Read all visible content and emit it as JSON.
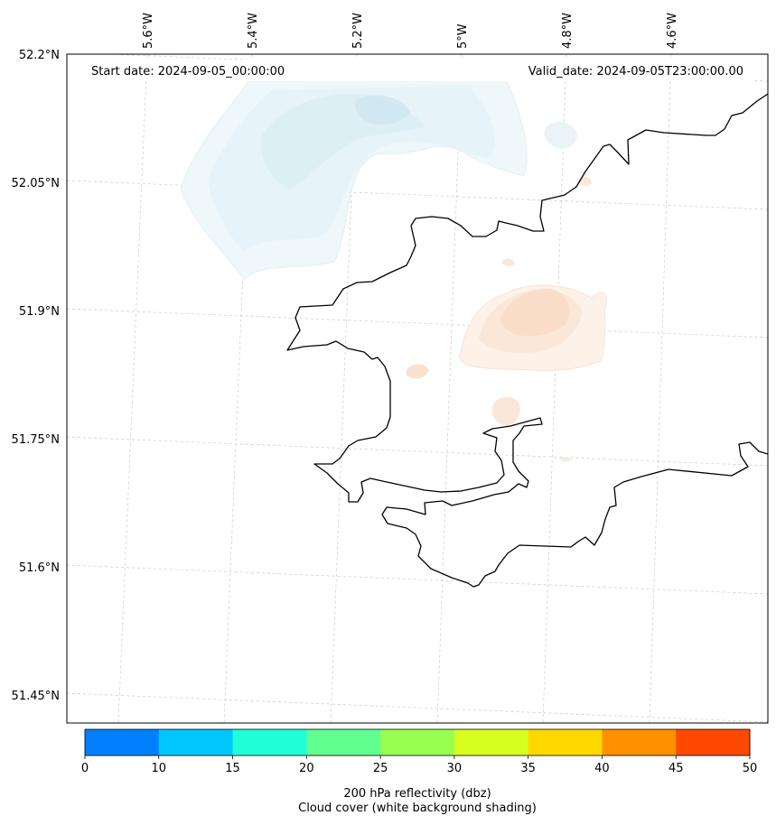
{
  "map": {
    "start_date": "Start date: 2024-09-05_00:00:00",
    "valid_date": "Valid_date: 2024-09-05T23:00:00.00",
    "lat_labels": [
      "52.2°N",
      "52.05°N",
      "51.9°N",
      "51.75°N",
      "51.6°N",
      "51.45°N"
    ],
    "lon_labels": [
      "5.6°W",
      "5.4°W",
      "5.2°W",
      "5°W",
      "4.8°W",
      "4.6°W"
    ]
  },
  "colorbar": {
    "title_line1": "200 hPa reflectivity (dbz)",
    "title_line2": "Cloud cover (white background shading)",
    "ticks": [
      "0",
      "10",
      "15",
      "20",
      "25",
      "30",
      "35",
      "40",
      "45",
      "50"
    ],
    "colors": [
      "#0080ff",
      "#00c8ff",
      "#20ffd8",
      "#60ff90",
      "#98ff50",
      "#d8ff20",
      "#ffd800",
      "#ff9000",
      "#ff4800"
    ]
  }
}
